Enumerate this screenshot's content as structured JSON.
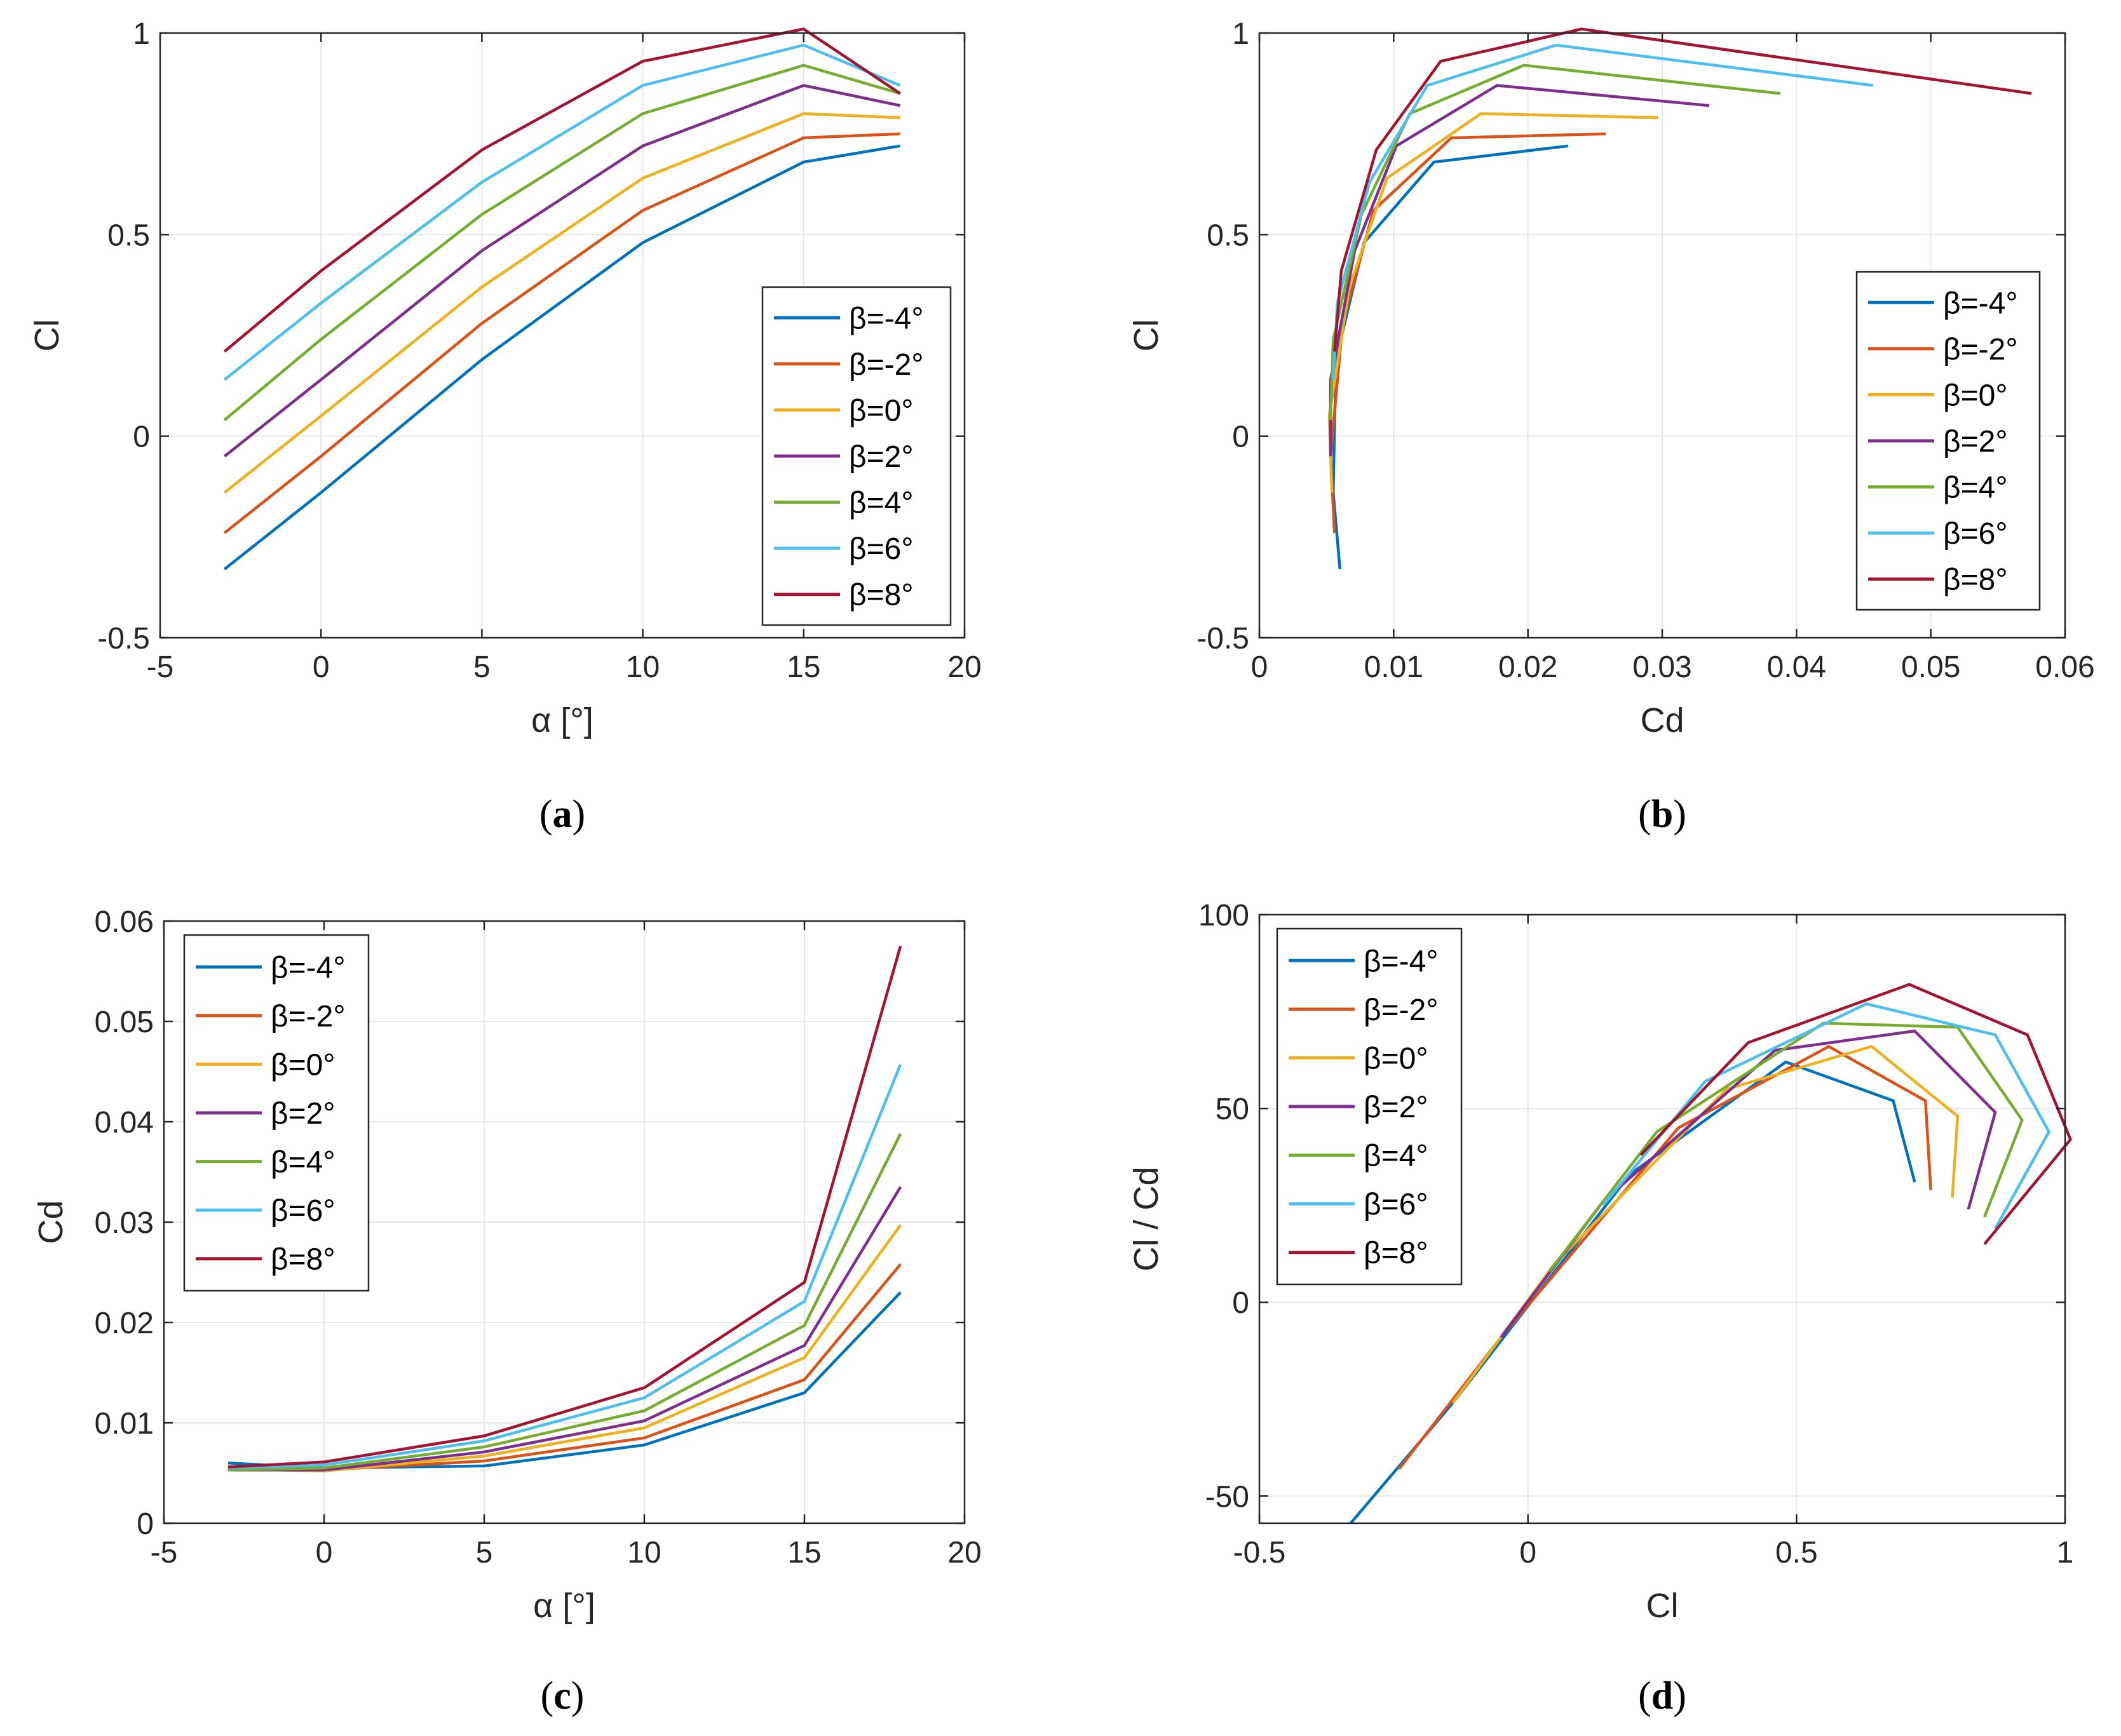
{
  "colors": [
    "#0072BD",
    "#D95319",
    "#EDB120",
    "#7E2F8E",
    "#77AC30",
    "#4DBEEE",
    "#A2142F"
  ],
  "series_names": [
    "β=-4°",
    "β=-2°",
    "β=0°",
    "β=2°",
    "β=4°",
    "β=6°",
    "β=8°"
  ],
  "chart_data": [
    {
      "id": "a",
      "panel_label": "a",
      "type": "line",
      "xlabel": "α [°]",
      "ylabel": "Cl",
      "xlim": [
        -5,
        20
      ],
      "ylim": [
        -0.5,
        1
      ],
      "xticks": [
        -5,
        0,
        5,
        10,
        15,
        20
      ],
      "xtick_labels": [
        "-5",
        "0",
        "5",
        "10",
        "15",
        "20"
      ],
      "yticks": [
        -0.5,
        0,
        0.5,
        1
      ],
      "ytick_labels": [
        "-0.5",
        "0",
        "0.5",
        "1"
      ],
      "legend_position": "bottom-right",
      "x": [
        -3,
        0,
        5,
        10,
        15,
        18
      ],
      "series": [
        {
          "name": "β=-4°",
          "values": [
            -0.33,
            -0.14,
            0.19,
            0.48,
            0.68,
            0.72
          ]
        },
        {
          "name": "β=-2°",
          "values": [
            -0.24,
            -0.05,
            0.28,
            0.56,
            0.74,
            0.75
          ]
        },
        {
          "name": "β=0°",
          "values": [
            -0.14,
            0.05,
            0.37,
            0.64,
            0.8,
            0.79
          ]
        },
        {
          "name": "β=2°",
          "values": [
            -0.05,
            0.14,
            0.46,
            0.72,
            0.87,
            0.82
          ]
        },
        {
          "name": "β=4°",
          "values": [
            0.04,
            0.24,
            0.55,
            0.8,
            0.92,
            0.85
          ]
        },
        {
          "name": "β=6°",
          "values": [
            0.14,
            0.33,
            0.63,
            0.87,
            0.97,
            0.87
          ]
        },
        {
          "name": "β=8°",
          "values": [
            0.21,
            0.41,
            0.71,
            0.93,
            1.01,
            0.85
          ]
        }
      ]
    },
    {
      "id": "b",
      "panel_label": "b",
      "type": "line",
      "xlabel": "Cd",
      "ylabel": "Cl",
      "xlim": [
        0,
        0.06
      ],
      "ylim": [
        -0.5,
        1
      ],
      "xticks": [
        0,
        0.01,
        0.02,
        0.03,
        0.04,
        0.05,
        0.06
      ],
      "xtick_labels": [
        "0",
        "0.01",
        "0.02",
        "0.03",
        "0.04",
        "0.05",
        "0.06"
      ],
      "yticks": [
        -0.5,
        0,
        0.5,
        1
      ],
      "ytick_labels": [
        "-0.5",
        "0",
        "0.5",
        "1"
      ],
      "legend_position": "bottom-right",
      "series": [
        {
          "name": "β=-4°",
          "x": [
            0.006,
            0.0055,
            0.0057,
            0.0078,
            0.013,
            0.023
          ],
          "y": [
            -0.33,
            -0.14,
            0.19,
            0.48,
            0.68,
            0.72
          ]
        },
        {
          "name": "β=-2°",
          "x": [
            0.0056,
            0.0053,
            0.0062,
            0.0085,
            0.0143,
            0.0258
          ],
          "y": [
            -0.24,
            -0.05,
            0.28,
            0.56,
            0.74,
            0.75
          ]
        },
        {
          "name": "β=0°",
          "x": [
            0.0054,
            0.0052,
            0.0067,
            0.0095,
            0.0165,
            0.0297
          ],
          "y": [
            -0.14,
            0.05,
            0.37,
            0.64,
            0.8,
            0.79
          ]
        },
        {
          "name": "β=2°",
          "x": [
            0.0053,
            0.0053,
            0.0071,
            0.0102,
            0.0177,
            0.0335
          ],
          "y": [
            -0.05,
            0.14,
            0.46,
            0.72,
            0.87,
            0.82
          ]
        },
        {
          "name": "β=4°",
          "x": [
            0.0053,
            0.0055,
            0.0076,
            0.0112,
            0.0197,
            0.0388
          ],
          "y": [
            0.04,
            0.24,
            0.55,
            0.8,
            0.92,
            0.85
          ]
        },
        {
          "name": "β=6°",
          "x": [
            0.0055,
            0.0058,
            0.0082,
            0.0125,
            0.0221,
            0.0457
          ],
          "y": [
            0.14,
            0.33,
            0.63,
            0.87,
            0.97,
            0.87
          ]
        },
        {
          "name": "β=8°",
          "x": [
            0.0056,
            0.0061,
            0.0087,
            0.0135,
            0.024,
            0.0575
          ],
          "y": [
            0.21,
            0.41,
            0.71,
            0.93,
            1.01,
            0.85
          ]
        }
      ]
    },
    {
      "id": "c",
      "panel_label": "c",
      "type": "line",
      "xlabel": "α [°]",
      "ylabel": "Cd",
      "xlim": [
        -5,
        20
      ],
      "ylim": [
        0,
        0.06
      ],
      "xticks": [
        -5,
        0,
        5,
        10,
        15,
        20
      ],
      "xtick_labels": [
        "-5",
        "0",
        "5",
        "10",
        "15",
        "20"
      ],
      "yticks": [
        0,
        0.01,
        0.02,
        0.03,
        0.04,
        0.05,
        0.06
      ],
      "ytick_labels": [
        "0",
        "0.01",
        "0.02",
        "0.03",
        "0.04",
        "0.05",
        "0.06"
      ],
      "legend_position": "top-left",
      "x": [
        -3,
        0,
        5,
        10,
        15,
        18
      ],
      "series": [
        {
          "name": "β=-4°",
          "values": [
            0.006,
            0.0055,
            0.0057,
            0.0078,
            0.013,
            0.023
          ]
        },
        {
          "name": "β=-2°",
          "values": [
            0.0056,
            0.0053,
            0.0062,
            0.0085,
            0.0143,
            0.0258
          ]
        },
        {
          "name": "β=0°",
          "values": [
            0.0054,
            0.0052,
            0.0067,
            0.0095,
            0.0165,
            0.0297
          ]
        },
        {
          "name": "β=2°",
          "values": [
            0.0053,
            0.0053,
            0.0071,
            0.0102,
            0.0177,
            0.0335
          ]
        },
        {
          "name": "β=4°",
          "values": [
            0.0053,
            0.0055,
            0.0076,
            0.0112,
            0.0197,
            0.0388
          ]
        },
        {
          "name": "β=6°",
          "values": [
            0.0055,
            0.0058,
            0.0082,
            0.0125,
            0.0221,
            0.0457
          ]
        },
        {
          "name": "β=8°",
          "values": [
            0.0056,
            0.0061,
            0.0087,
            0.0135,
            0.024,
            0.0575
          ]
        }
      ]
    },
    {
      "id": "d",
      "panel_label": "d",
      "type": "line",
      "xlabel": "Cl",
      "ylabel": "Cl / Cd",
      "xlim": [
        -0.5,
        1
      ],
      "ylim": [
        -57,
        100
      ],
      "xticks": [
        -0.5,
        0,
        0.5,
        1
      ],
      "xtick_labels": [
        "-0.5",
        "0",
        "0.5",
        "1"
      ],
      "yticks": [
        -50,
        0,
        50,
        100
      ],
      "ytick_labels": [
        "-50",
        "0",
        "50",
        "100"
      ],
      "legend_position": "top-left",
      "series": [
        {
          "name": "β=-4°",
          "x": [
            -0.33,
            -0.14,
            0.19,
            0.48,
            0.68,
            0.72
          ],
          "y": [
            -57,
            -26,
            33,
            62,
            52,
            31
          ]
        },
        {
          "name": "β=-2°",
          "x": [
            -0.24,
            -0.05,
            0.28,
            0.56,
            0.74,
            0.75
          ],
          "y": [
            -43,
            -9,
            45,
            66,
            52,
            29
          ]
        },
        {
          "name": "β=0°",
          "x": [
            -0.14,
            0.05,
            0.37,
            0.64,
            0.8,
            0.79
          ],
          "y": [
            -26,
            10,
            55,
            66,
            48,
            27
          ]
        },
        {
          "name": "β=2°",
          "x": [
            -0.05,
            0.14,
            0.46,
            0.72,
            0.87,
            0.82
          ],
          "y": [
            -9,
            26,
            65,
            70,
            49,
            24
          ]
        },
        {
          "name": "β=4°",
          "x": [
            0.04,
            0.24,
            0.55,
            0.8,
            0.92,
            0.85
          ],
          "y": [
            8,
            44,
            72,
            71,
            47,
            22
          ]
        },
        {
          "name": "β=6°",
          "x": [
            0.14,
            0.33,
            0.63,
            0.87,
            0.97,
            0.87
          ],
          "y": [
            25,
            57,
            77,
            69,
            44,
            19
          ]
        },
        {
          "name": "β=8°",
          "x": [
            0.21,
            0.41,
            0.71,
            0.93,
            1.01,
            0.85
          ],
          "y": [
            38,
            67,
            82,
            69,
            42,
            15
          ]
        }
      ]
    }
  ]
}
